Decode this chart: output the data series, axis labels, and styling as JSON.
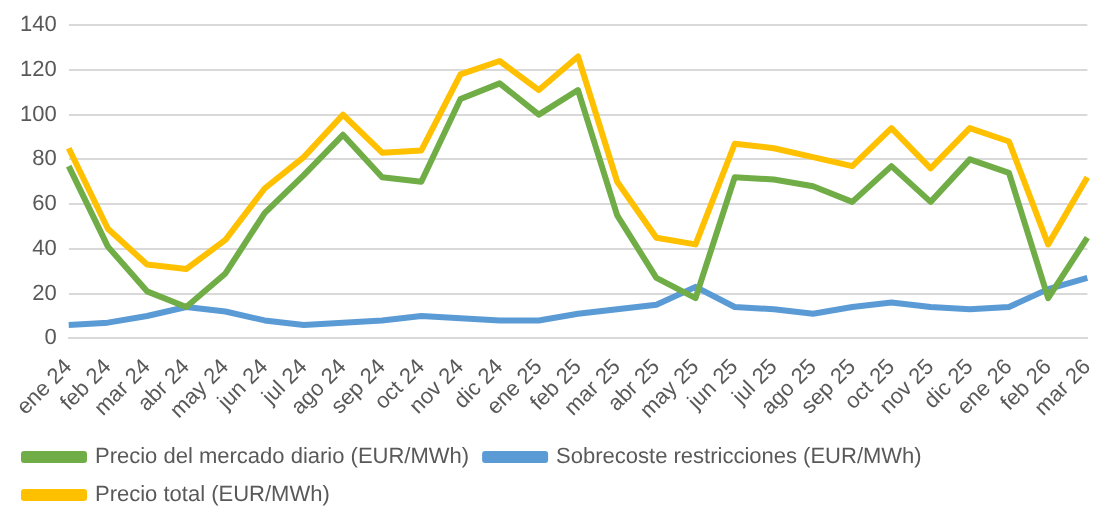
{
  "chart_data": {
    "type": "line",
    "categories": [
      "ene 24",
      "feb 24",
      "mar 24",
      "abr 24",
      "may 24",
      "jun 24",
      "jul 24",
      "ago 24",
      "sep 24",
      "oct 24",
      "nov 24",
      "dic 24",
      "ene 25",
      "feb 25",
      "mar 25",
      "abr 25",
      "may 25",
      "jun 25",
      "jul 25",
      "ago 25",
      "sep 25",
      "oct 25",
      "nov 25",
      "dic 25",
      "ene 26",
      "feb 26",
      "mar 26"
    ],
    "series": [
      {
        "name": "Precio del mercado diario (EUR/MWh)",
        "color": "#70ad47",
        "values": [
          77,
          41,
          21,
          14,
          29,
          56,
          73,
          91,
          72,
          70,
          107,
          114,
          100,
          111,
          55,
          27,
          18,
          72,
          71,
          68,
          61,
          77,
          61,
          80,
          74,
          18,
          45
        ]
      },
      {
        "name": "Sobrecoste restricciones (EUR/MWh)",
        "color": "#5b9bd5",
        "values": [
          6,
          7,
          10,
          14,
          12,
          8,
          6,
          7,
          8,
          10,
          9,
          8,
          8,
          11,
          13,
          15,
          23,
          14,
          13,
          11,
          14,
          16,
          14,
          13,
          14,
          22,
          27
        ]
      },
      {
        "name": "Precio total (EUR/MWh)",
        "color": "#ffc000",
        "values": [
          85,
          49,
          33,
          31,
          44,
          67,
          81,
          100,
          83,
          84,
          118,
          124,
          111,
          126,
          70,
          45,
          42,
          87,
          85,
          81,
          77,
          94,
          76,
          94,
          88,
          42,
          72
        ]
      }
    ],
    "ylim": [
      0,
      140
    ],
    "yticks": [
      0,
      20,
      40,
      60,
      80,
      100,
      120,
      140
    ],
    "grid": "y",
    "legend": "bottom",
    "marker": "none",
    "line_style": "solid"
  }
}
